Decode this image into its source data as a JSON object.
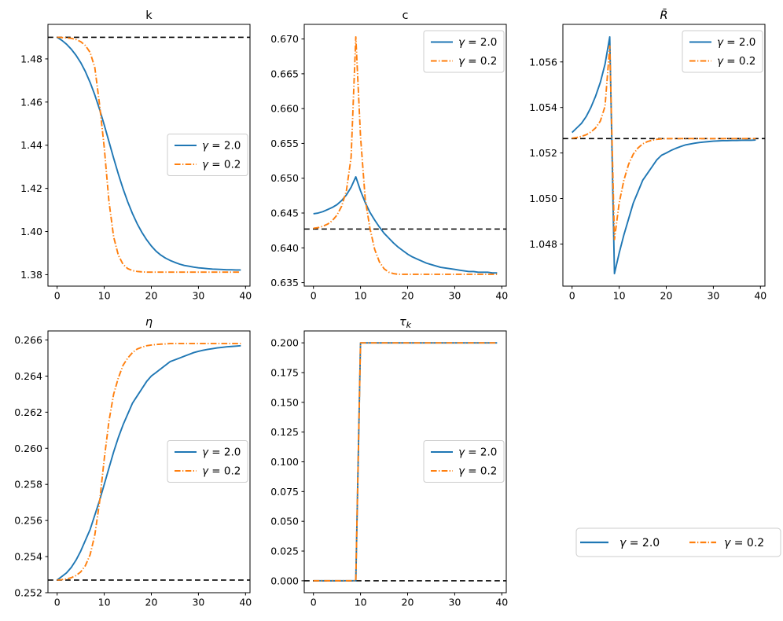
{
  "figure": {
    "background": "#ffffff",
    "accent_blue": "#1f77b4",
    "accent_orange": "#ff7f0e",
    "baseline_color": "#000000",
    "legend_labels": [
      "γ = 2.0",
      "γ = 0.2"
    ]
  },
  "chart_data": {
    "type": "line",
    "grid": false,
    "x": [
      0,
      1,
      2,
      3,
      4,
      5,
      6,
      7,
      8,
      9,
      10,
      11,
      12,
      13,
      14,
      15,
      16,
      17,
      18,
      19,
      20,
      21,
      22,
      23,
      24,
      25,
      26,
      27,
      28,
      29,
      30,
      31,
      32,
      33,
      34,
      35,
      36,
      37,
      38,
      39
    ],
    "xlim": [
      -1.95,
      40.95
    ],
    "xticks": [
      0,
      10,
      20,
      30,
      40
    ],
    "series_names": [
      "γ = 2.0",
      "γ = 0.2"
    ],
    "series_colors": [
      "#1f77b4",
      "#ff7f0e"
    ],
    "series_styles": [
      "solid",
      "dashdot"
    ],
    "baseline_style": "dashed",
    "subplots": [
      {
        "id": "k",
        "title": "k",
        "title_italic": false,
        "title_sub": "",
        "row": 0,
        "col": 0,
        "ylim": [
          1.3747,
          1.496
        ],
        "yticks": [
          1.38,
          1.4,
          1.42,
          1.44,
          1.46,
          1.48
        ],
        "ydecimals": 2,
        "baseline": 1.49,
        "legend_loc": "center right",
        "series": [
          [
            1.49,
            1.4886,
            1.4868,
            1.4845,
            1.4817,
            1.4783,
            1.4741,
            1.4691,
            1.4633,
            1.4567,
            1.4494,
            1.4417,
            1.434,
            1.4266,
            1.4198,
            1.4137,
            1.4083,
            1.4036,
            1.3996,
            1.3962,
            1.3933,
            1.3909,
            1.3891,
            1.3877,
            1.3866,
            1.3857,
            1.3849,
            1.3843,
            1.3839,
            1.3835,
            1.3832,
            1.383,
            1.3828,
            1.3826,
            1.3825,
            1.3824,
            1.3823,
            1.3823,
            1.3822,
            1.3822
          ],
          [
            1.49,
            1.4899,
            1.4898,
            1.4895,
            1.489,
            1.488,
            1.4862,
            1.483,
            1.476,
            1.459,
            1.439,
            1.414,
            1.3975,
            1.389,
            1.3848,
            1.3828,
            1.3819,
            1.3815,
            1.3813,
            1.3812,
            1.3812,
            1.3812,
            1.3812,
            1.3812,
            1.3812,
            1.3812,
            1.3812,
            1.3812,
            1.3812,
            1.3812,
            1.3812,
            1.3812,
            1.3812,
            1.3812,
            1.3812,
            1.3812,
            1.3812,
            1.3812,
            1.3812,
            1.3812
          ]
        ]
      },
      {
        "id": "c",
        "title": "c",
        "title_italic": false,
        "title_sub": "",
        "row": 0,
        "col": 1,
        "ylim": [
          0.6345,
          0.6721
        ],
        "yticks": [
          0.635,
          0.64,
          0.645,
          0.65,
          0.655,
          0.66,
          0.665,
          0.67
        ],
        "ydecimals": 3,
        "baseline": 0.6427,
        "legend_loc": "upper right",
        "series": [
          [
            0.6449,
            0.645,
            0.6452,
            0.6455,
            0.6458,
            0.6462,
            0.6468,
            0.6476,
            0.6487,
            0.6502,
            0.6482,
            0.6465,
            0.6451,
            0.644,
            0.643,
            0.6421,
            0.6414,
            0.6407,
            0.6401,
            0.6396,
            0.6391,
            0.6387,
            0.6384,
            0.6381,
            0.6378,
            0.6376,
            0.6374,
            0.6372,
            0.6371,
            0.637,
            0.6369,
            0.6368,
            0.6367,
            0.6366,
            0.6366,
            0.6365,
            0.6365,
            0.6365,
            0.6364,
            0.6364
          ],
          [
            0.6428,
            0.6429,
            0.6431,
            0.6434,
            0.6439,
            0.6447,
            0.646,
            0.6482,
            0.653,
            0.6703,
            0.656,
            0.647,
            0.6428,
            0.6398,
            0.638,
            0.637,
            0.6365,
            0.6363,
            0.6362,
            0.6362,
            0.6362,
            0.6362,
            0.6362,
            0.6362,
            0.6362,
            0.6362,
            0.6362,
            0.6362,
            0.6362,
            0.6362,
            0.6362,
            0.6362,
            0.6362,
            0.6362,
            0.6362,
            0.6362,
            0.6362,
            0.6362,
            0.6362,
            0.6362
          ]
        ]
      },
      {
        "id": "R-bar",
        "title": "R̄",
        "title_italic": true,
        "title_sub": "",
        "row": 0,
        "col": 2,
        "ylim": [
          1.04615,
          1.05765
        ],
        "yticks": [
          1.048,
          1.05,
          1.052,
          1.054,
          1.056
        ],
        "ydecimals": 3,
        "baseline": 1.05263,
        "legend_loc": "upper right",
        "series": [
          [
            1.0529,
            1.0531,
            1.0533,
            1.0536,
            1.054,
            1.0545,
            1.0551,
            1.0559,
            1.0571,
            1.0467,
            1.0476,
            1.0484,
            1.0491,
            1.0498,
            1.0503,
            1.0508,
            1.0511,
            1.0514,
            1.0517,
            1.0519,
            1.052,
            1.05211,
            1.0522,
            1.05228,
            1.05235,
            1.05239,
            1.05243,
            1.05246,
            1.05248,
            1.0525,
            1.05252,
            1.05253,
            1.05254,
            1.05254,
            1.05255,
            1.05255,
            1.05256,
            1.05256,
            1.05256,
            1.05257
          ],
          [
            1.05265,
            1.05268,
            1.05273,
            1.0528,
            1.05292,
            1.0531,
            1.0534,
            1.05405,
            1.0567,
            1.0482,
            1.0498,
            1.0508,
            1.0515,
            1.05195,
            1.05222,
            1.0524,
            1.0525,
            1.05256,
            1.0526,
            1.05262,
            1.05263,
            1.05263,
            1.05263,
            1.05263,
            1.05263,
            1.05263,
            1.05263,
            1.05263,
            1.05263,
            1.05263,
            1.05263,
            1.05263,
            1.05263,
            1.05263,
            1.05263,
            1.05263,
            1.05263,
            1.05263,
            1.05263,
            1.05263
          ]
        ]
      },
      {
        "id": "eta",
        "title": "η",
        "title_italic": true,
        "title_sub": "",
        "row": 1,
        "col": 0,
        "ylim": [
          0.252,
          0.2665
        ],
        "yticks": [
          0.252,
          0.254,
          0.256,
          0.258,
          0.26,
          0.262,
          0.264,
          0.266
        ],
        "ydecimals": 3,
        "baseline": 0.2527,
        "legend_loc": "center right",
        "series": [
          [
            0.2527,
            0.2529,
            0.2531,
            0.2534,
            0.2538,
            0.2543,
            0.2549,
            0.2555,
            0.2563,
            0.2571,
            0.258,
            0.2589,
            0.2598,
            0.2606,
            0.2613,
            0.2619,
            0.2625,
            0.2629,
            0.2633,
            0.2637,
            0.264,
            0.2642,
            0.2644,
            0.2646,
            0.2648,
            0.2649,
            0.265,
            0.2651,
            0.2652,
            0.2653,
            0.26537,
            0.26543,
            0.26548,
            0.26552,
            0.26556,
            0.26559,
            0.26562,
            0.26564,
            0.26566,
            0.26568
          ],
          [
            0.2527,
            0.25272,
            0.25276,
            0.25283,
            0.25295,
            0.25315,
            0.2535,
            0.2541,
            0.2552,
            0.257,
            0.2594,
            0.2615,
            0.263,
            0.2639,
            0.2646,
            0.265,
            0.2653,
            0.2655,
            0.2656,
            0.26568,
            0.26572,
            0.26575,
            0.26577,
            0.26578,
            0.2658,
            0.2658,
            0.2658,
            0.2658,
            0.2658,
            0.2658,
            0.2658,
            0.2658,
            0.2658,
            0.2658,
            0.2658,
            0.2658,
            0.2658,
            0.2658,
            0.2658,
            0.2658
          ]
        ]
      },
      {
        "id": "tau-k",
        "title": "τ",
        "title_italic": true,
        "title_sub": "k",
        "row": 1,
        "col": 1,
        "ylim": [
          -0.01,
          0.21
        ],
        "yticks": [
          0.0,
          0.025,
          0.05,
          0.075,
          0.1,
          0.125,
          0.15,
          0.175,
          0.2
        ],
        "ydecimals": 3,
        "baseline": 0.0,
        "legend_loc": "center right",
        "series": [
          [
            0,
            0,
            0,
            0,
            0,
            0,
            0,
            0,
            0,
            0,
            0.2,
            0.2,
            0.2,
            0.2,
            0.2,
            0.2,
            0.2,
            0.2,
            0.2,
            0.2,
            0.2,
            0.2,
            0.2,
            0.2,
            0.2,
            0.2,
            0.2,
            0.2,
            0.2,
            0.2,
            0.2,
            0.2,
            0.2,
            0.2,
            0.2,
            0.2,
            0.2,
            0.2,
            0.2,
            0.2
          ],
          [
            0,
            0,
            0,
            0,
            0,
            0,
            0,
            0,
            0,
            0,
            0.2,
            0.2,
            0.2,
            0.2,
            0.2,
            0.2,
            0.2,
            0.2,
            0.2,
            0.2,
            0.2,
            0.2,
            0.2,
            0.2,
            0.2,
            0.2,
            0.2,
            0.2,
            0.2,
            0.2,
            0.2,
            0.2,
            0.2,
            0.2,
            0.2,
            0.2,
            0.2,
            0.2,
            0.2,
            0.2
          ]
        ]
      }
    ],
    "figure_legend": {
      "labels": [
        "γ = 2.0",
        "γ = 0.2"
      ],
      "orientation": "horizontal",
      "position": "lower right"
    }
  }
}
